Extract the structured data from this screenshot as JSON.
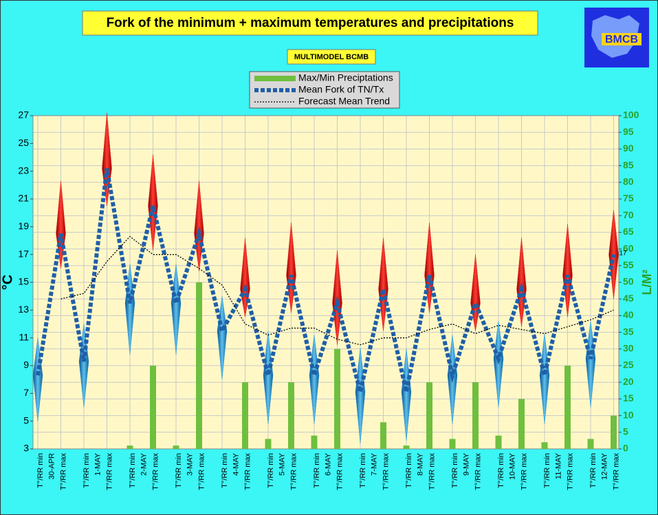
{
  "chart_data": {
    "type": "line",
    "title": "Fork of the minimum + maximum temperatures and precipitations",
    "subtitle": "MULTIMODEL BCMB",
    "logo_text": "BMCB",
    "y_label": "°C",
    "y2_label": "L/M²",
    "categories": [
      "T°/RR min",
      "T°/RR max",
      "T°/RR min",
      "T°/RR max",
      "T°/RR min",
      "T°/RR max",
      "T°/RR min",
      "T°/RR max",
      "T°/RR min",
      "T°/RR max",
      "T°/RR min",
      "T°/RR max",
      "T°/RR min",
      "T°/RR max",
      "T°/RR min",
      "T°/RR max",
      "T°/RR min",
      "T°/RR max",
      "T°/RR min",
      "T°/RR max",
      "T°/RR min",
      "T°/RR max",
      "T°/RR min",
      "T°/RR max",
      "T°/RR min",
      "T°/RR max"
    ],
    "dates": [
      "30-APR",
      "1-MAY",
      "2-MAY",
      "3-MAY",
      "4-MAY",
      "5-MAY",
      "6-MAY",
      "7-MAY",
      "8-MAY",
      "9-MAY",
      "10-MAY",
      "11-MAY",
      "12-MAY"
    ],
    "series": [
      {
        "name": "Max/Min Preciptations",
        "type": "bar",
        "axis": "y2",
        "color": "#6fbf3f",
        "values": [
          0,
          0,
          0,
          0,
          1,
          25,
          1,
          50,
          0,
          20,
          3,
          20,
          4,
          30,
          0,
          8,
          1,
          20,
          3,
          20,
          4,
          15,
          2,
          25,
          3,
          10
        ]
      },
      {
        "name": "Mean Fork of TN/Tx",
        "color": "#1f5fa8",
        "max_color": "#e02020",
        "min_color": "#2a8fd0",
        "values": [
          8.3,
          18.5,
          9.3,
          23.2,
          13.5,
          20.5,
          13.5,
          18.5,
          11.5,
          14.5,
          8.3,
          15.5,
          8.3,
          13.5,
          7.1,
          14.5,
          7.1,
          15.5,
          8.3,
          13.5,
          9.5,
          14.5,
          8.3,
          15.5,
          9.5,
          17
        ],
        "range_low": [
          5,
          16,
          6,
          20.5,
          9.8,
          17.3,
          9.8,
          15.8,
          8,
          12.5,
          4.8,
          12.8,
          4.8,
          10.5,
          3.4,
          11.5,
          3.6,
          12.8,
          4.8,
          11.5,
          6,
          11.8,
          4.8,
          12.5,
          6,
          13.8
        ],
        "range_high": [
          11,
          22.3,
          12,
          27.2,
          16.3,
          24.2,
          16.3,
          22.3,
          14,
          18.2,
          11.5,
          19.3,
          11.2,
          17.3,
          10.3,
          18.2,
          10.2,
          19.3,
          11.2,
          17,
          12.2,
          18.2,
          11.3,
          19.2,
          12.2,
          20.2
        ]
      },
      {
        "name": "Forecast Mean Trend",
        "color": "#000000",
        "values": [
          null,
          13.8,
          14.2,
          16.5,
          18.3,
          17,
          17,
          16,
          14.8,
          12,
          11.2,
          11.7,
          11.7,
          10.9,
          10.5,
          11,
          11,
          11.6,
          12,
          11.3,
          11.9,
          11.6,
          11.3,
          11.8,
          12.3,
          13
        ]
      }
    ],
    "ylim": [
      3,
      27
    ],
    "yticks": [
      3,
      5,
      7,
      9,
      11,
      13,
      15,
      17,
      19,
      21,
      23,
      25,
      27
    ],
    "y2lim": [
      0,
      100
    ],
    "y2ticks": [
      0,
      5,
      10,
      15,
      20,
      25,
      30,
      35,
      40,
      45,
      50,
      55,
      60,
      65,
      70,
      75,
      80,
      85,
      90,
      95,
      100
    ],
    "grid": true
  }
}
